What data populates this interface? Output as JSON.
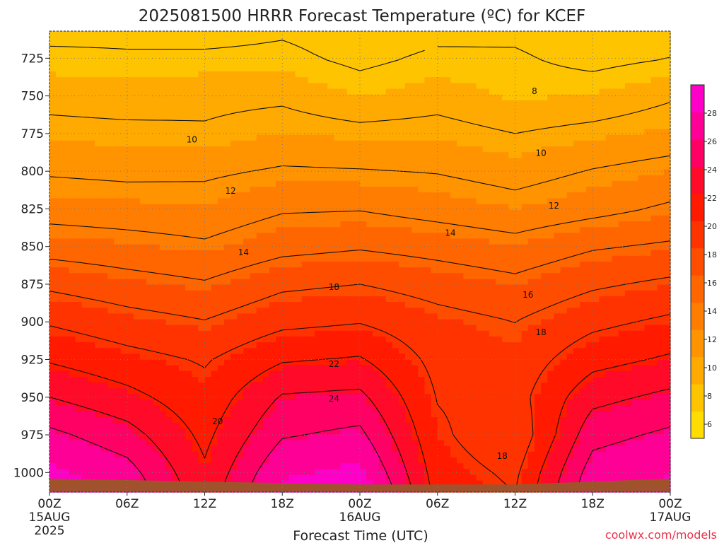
{
  "chart_data": {
    "type": "contour",
    "title": "2025081500 HRRR Forecast Temperature (ºC) for KCEF",
    "xlabel": "Forecast Time (UTC)",
    "credit": "coolwx.com/models",
    "x_ticks": [
      {
        "hours": 0,
        "label": "00Z",
        "sub": "15AUG",
        "sub2": "2025"
      },
      {
        "hours": 6,
        "label": "06Z"
      },
      {
        "hours": 12,
        "label": "12Z"
      },
      {
        "hours": 18,
        "label": "18Z"
      },
      {
        "hours": 24,
        "label": "00Z",
        "sub": "16AUG"
      },
      {
        "hours": 30,
        "label": "06Z"
      },
      {
        "hours": 36,
        "label": "12Z"
      },
      {
        "hours": 42,
        "label": "18Z"
      },
      {
        "hours": 48,
        "label": "00Z",
        "sub": "17AUG"
      }
    ],
    "y_ticks": [
      725,
      750,
      775,
      800,
      825,
      850,
      875,
      900,
      925,
      950,
      975,
      1000
    ],
    "y_range_hPa": [
      707,
      1013
    ],
    "x_range_hours": [
      0,
      48
    ],
    "colorbar": {
      "ticks": [
        6,
        8,
        10,
        12,
        14,
        16,
        18,
        20,
        22,
        24,
        26,
        28
      ],
      "range": [
        5,
        30
      ],
      "colors": [
        "#ffdd00",
        "#ffc400",
        "#ffaa00",
        "#ff9400",
        "#ff7d00",
        "#ff6600",
        "#ff4d00",
        "#ff3300",
        "#ff1a00",
        "#ff0a28",
        "#ff0064",
        "#ff0096",
        "#ff00c8"
      ]
    },
    "contour_labels": [
      {
        "text": "8",
        "hours": 37.5,
        "hPa": 747
      },
      {
        "text": "10",
        "hours": 11,
        "hPa": 779
      },
      {
        "text": "10",
        "hours": 38,
        "hPa": 788
      },
      {
        "text": "12",
        "hours": 14,
        "hPa": 813
      },
      {
        "text": "12",
        "hours": 39,
        "hPa": 823
      },
      {
        "text": "14",
        "hours": 15,
        "hPa": 854
      },
      {
        "text": "14",
        "hours": 31,
        "hPa": 841
      },
      {
        "text": "16",
        "hours": 37,
        "hPa": 882
      },
      {
        "text": "18",
        "hours": 22,
        "hPa": 877
      },
      {
        "text": "18",
        "hours": 38,
        "hPa": 907
      },
      {
        "text": "18",
        "hours": 35,
        "hPa": 989
      },
      {
        "text": "20",
        "hours": 13,
        "hPa": 966
      },
      {
        "text": "22",
        "hours": 22,
        "hPa": 928
      },
      {
        "text": "24",
        "hours": 22,
        "hPa": 951
      }
    ],
    "contour_levels": [
      8,
      10,
      12,
      14,
      16,
      18,
      20,
      22,
      24,
      26
    ],
    "profiles_temperature_C": [
      {
        "hours": 0,
        "levels": [
          [
            707,
            7.5
          ],
          [
            725,
            8.4
          ],
          [
            750,
            9.5
          ],
          [
            775,
            10.5
          ],
          [
            800,
            11.8
          ],
          [
            825,
            13.2
          ],
          [
            850,
            15.2
          ],
          [
            875,
            17.6
          ],
          [
            900,
            19.8
          ],
          [
            925,
            21.8
          ],
          [
            950,
            24.0
          ],
          [
            975,
            26.5
          ],
          [
            1000,
            28.5
          ],
          [
            1013,
            29.5
          ]
        ]
      },
      {
        "hours": 6,
        "levels": [
          [
            707,
            7.6
          ],
          [
            725,
            8.2
          ],
          [
            750,
            9.3
          ],
          [
            775,
            10.4
          ],
          [
            800,
            11.6
          ],
          [
            825,
            13.0
          ],
          [
            850,
            14.8
          ],
          [
            875,
            16.8
          ],
          [
            900,
            18.8
          ],
          [
            925,
            20.7
          ],
          [
            950,
            22.6
          ],
          [
            975,
            24.8
          ],
          [
            1000,
            26.8
          ],
          [
            1013,
            27.5
          ]
        ]
      },
      {
        "hours": 12,
        "levels": [
          [
            707,
            7.4
          ],
          [
            725,
            8.3
          ],
          [
            750,
            9.6
          ],
          [
            775,
            10.2
          ],
          [
            800,
            11.7
          ],
          [
            825,
            12.8
          ],
          [
            850,
            14.3
          ],
          [
            875,
            16.2
          ],
          [
            900,
            18.1
          ],
          [
            925,
            19.8
          ],
          [
            950,
            20.7
          ],
          [
            975,
            21.5
          ],
          [
            1000,
            22.3
          ],
          [
            1013,
            22.8
          ]
        ]
      },
      {
        "hours": 18,
        "levels": [
          [
            707,
            7.8
          ],
          [
            725,
            8.4
          ],
          [
            750,
            9.7
          ],
          [
            775,
            10.8
          ],
          [
            800,
            12.2
          ],
          [
            825,
            13.8
          ],
          [
            850,
            15.4
          ],
          [
            875,
            17.6
          ],
          [
            900,
            19.5
          ],
          [
            925,
            21.8
          ],
          [
            950,
            24.2
          ],
          [
            975,
            25.8
          ],
          [
            1000,
            27.8
          ],
          [
            1013,
            28.6
          ]
        ]
      },
      {
        "hours": 24,
        "levels": [
          [
            707,
            7.3
          ],
          [
            725,
            7.6
          ],
          [
            750,
            8.8
          ],
          [
            775,
            10.5
          ],
          [
            800,
            12.1
          ],
          [
            825,
            13.9
          ],
          [
            850,
            15.8
          ],
          [
            875,
            18.0
          ],
          [
            900,
            19.9
          ],
          [
            925,
            22.2
          ],
          [
            950,
            24.5
          ],
          [
            975,
            26.5
          ],
          [
            1000,
            28.6
          ],
          [
            1013,
            29.8
          ]
        ]
      },
      {
        "hours": 30,
        "levels": [
          [
            707,
            7.6
          ],
          [
            725,
            8.3
          ],
          [
            750,
            9.4
          ],
          [
            775,
            10.6
          ],
          [
            800,
            11.9
          ],
          [
            825,
            13.3
          ],
          [
            850,
            15.3
          ],
          [
            875,
            17.2
          ],
          [
            900,
            18.7
          ],
          [
            925,
            19.4
          ],
          [
            950,
            19.9
          ],
          [
            975,
            20.4
          ],
          [
            1000,
            21.0
          ],
          [
            1013,
            21.3
          ]
        ]
      },
      {
        "hours": 36,
        "levels": [
          [
            707,
            7.7
          ],
          [
            725,
            8.2
          ],
          [
            750,
            8.7
          ],
          [
            775,
            10.0
          ],
          [
            800,
            11.3
          ],
          [
            825,
            12.7
          ],
          [
            850,
            14.7
          ],
          [
            875,
            16.5
          ],
          [
            900,
            18.0
          ],
          [
            925,
            18.8
          ],
          [
            950,
            19.2
          ],
          [
            975,
            18.4
          ],
          [
            1000,
            19.6
          ],
          [
            1013,
            20.0
          ]
        ]
      },
      {
        "hours": 42,
        "levels": [
          [
            707,
            7.2
          ],
          [
            725,
            7.5
          ],
          [
            750,
            8.9
          ],
          [
            775,
            10.5
          ],
          [
            800,
            12.1
          ],
          [
            825,
            13.4
          ],
          [
            850,
            15.8
          ],
          [
            875,
            17.7
          ],
          [
            900,
            19.5
          ],
          [
            925,
            21.3
          ],
          [
            950,
            23.4
          ],
          [
            975,
            25.3
          ],
          [
            1000,
            27.0
          ],
          [
            1013,
            27.6
          ]
        ]
      },
      {
        "hours": 48,
        "levels": [
          [
            707,
            7.4
          ],
          [
            725,
            8.0
          ],
          [
            750,
            9.8
          ],
          [
            775,
            11.0
          ],
          [
            800,
            12.7
          ],
          [
            825,
            14.3
          ],
          [
            850,
            16.3
          ],
          [
            875,
            18.4
          ],
          [
            900,
            20.4
          ],
          [
            925,
            22.3
          ],
          [
            950,
            24.5
          ],
          [
            975,
            26.4
          ],
          [
            1000,
            28.0
          ],
          [
            1013,
            28.6
          ]
        ]
      }
    ],
    "surface_pressure_hPa": [
      {
        "hours": 0,
        "hPa": 1004
      },
      {
        "hours": 6,
        "hPa": 1005
      },
      {
        "hours": 12,
        "hPa": 1006
      },
      {
        "hours": 18,
        "hPa": 1007
      },
      {
        "hours": 24,
        "hPa": 1008
      },
      {
        "hours": 30,
        "hPa": 1008
      },
      {
        "hours": 36,
        "hPa": 1008
      },
      {
        "hours": 42,
        "hPa": 1006
      },
      {
        "hours": 48,
        "hPa": 1004
      }
    ],
    "grid": true
  }
}
